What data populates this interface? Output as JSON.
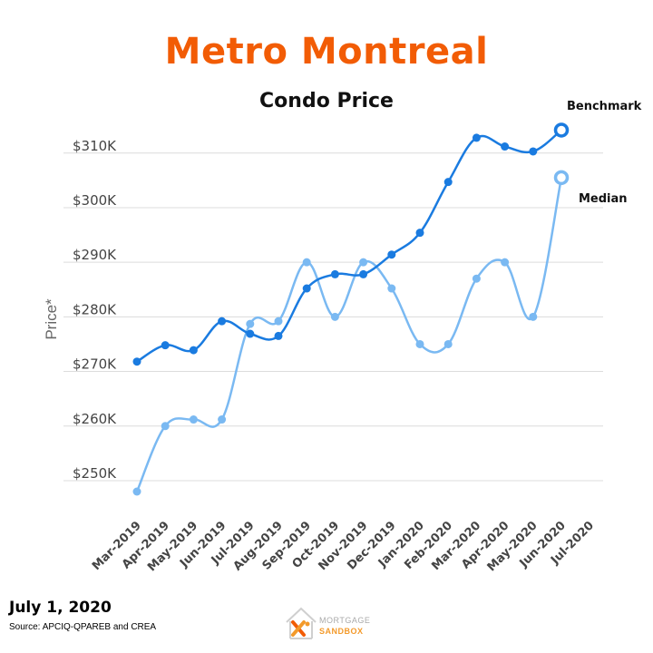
{
  "title": "Metro Montreal",
  "subtitle": "Condo Price",
  "date": "July 1, 2020",
  "source": "Source: APCIQ-QPAREB  and CREA",
  "logo": {
    "top": "MORTGAGE",
    "bottom": "SANDBOX"
  },
  "chart_data": {
    "type": "line",
    "categories": [
      "Mar-2019",
      "Apr-2019",
      "May-2019",
      "Jun-2019",
      "Jul-2019",
      "Aug-2019",
      "Sep-2019",
      "Oct-2019",
      "Nov-2019",
      "Dec-2019",
      "Jan-2020",
      "Feb-2020",
      "Mar-2020",
      "Apr-2020",
      "May-2020",
      "Jun-2020",
      "Jul-2020"
    ],
    "series": [
      {
        "name": "Benchmark",
        "color": "#1a7be0",
        "values": [
          271800,
          274800,
          273900,
          279200,
          276900,
          276500,
          285200,
          287800,
          287800,
          291400,
          295400,
          304700,
          312800,
          311200,
          310300,
          314200,
          null
        ]
      },
      {
        "name": "Median",
        "color": "#7ab9f2",
        "values": [
          248000,
          260000,
          261200,
          261200,
          278700,
          279200,
          290000,
          280000,
          290000,
          285200,
          275000,
          275000,
          287000,
          290000,
          280000,
          305500,
          null
        ]
      }
    ],
    "ylabel": "Price*",
    "yticks": [
      "$250K",
      "$260K",
      "$270K",
      "$280K",
      "$290K",
      "$300K",
      "$310K"
    ],
    "ytick_values": [
      250000,
      260000,
      270000,
      280000,
      290000,
      300000,
      310000
    ],
    "ylim": [
      245000,
      317000
    ],
    "grid": true,
    "legend": "end-of-line labels"
  },
  "colors": {
    "title": "#f25c05",
    "benchmark": "#1a7be0",
    "median": "#7ab9f2",
    "grid": "#dcdcdc"
  }
}
